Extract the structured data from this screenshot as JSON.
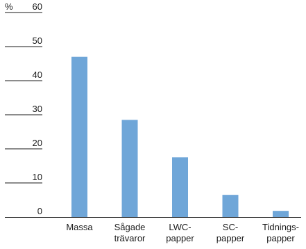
{
  "chart_data": {
    "type": "bar",
    "unit_label": "%",
    "categories": [
      [
        "Massa"
      ],
      [
        "Sågade",
        "trävaror"
      ],
      [
        "LWC-",
        "papper"
      ],
      [
        "SC-",
        "papper"
      ],
      [
        "Tidnings-",
        "papper"
      ]
    ],
    "values": [
      47,
      28.5,
      17.5,
      6.5,
      1.8
    ],
    "y_ticks": [
      "0",
      "10",
      "20",
      "30",
      "40",
      "50",
      "60"
    ],
    "ylim": [
      0,
      60
    ],
    "grid": false,
    "bar_color": "#6fa6d8",
    "axis_color": "#1a1a1a"
  }
}
